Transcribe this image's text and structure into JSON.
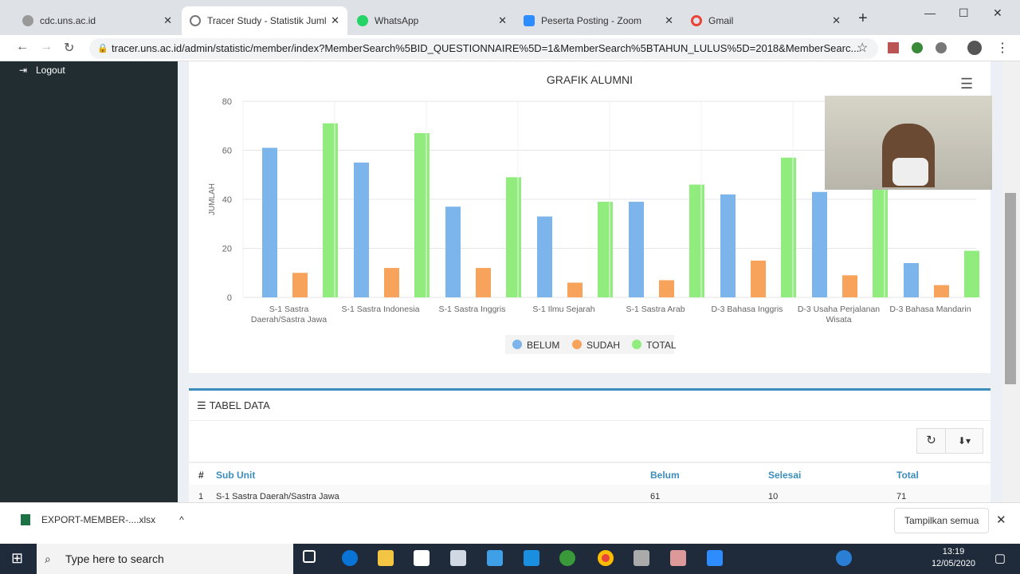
{
  "browser": {
    "tabs": [
      {
        "label": "cdc.uns.ac.id",
        "color": "#888"
      },
      {
        "label": "Tracer Study - Statistik Jumlah",
        "color": "#777"
      },
      {
        "label": "WhatsApp",
        "color": "#25d366"
      },
      {
        "label": "Peserta Posting - Zoom",
        "color": "#2d8cff"
      },
      {
        "label": "Gmail",
        "color": "#ea4335"
      }
    ],
    "url": "tracer.uns.ac.id/admin/statistic/member/index?MemberSearch%5BID_QUESTIONNAIRE%5D=1&MemberSearch%5BTAHUN_LULUS%5D=2018&MemberSearc..."
  },
  "sidebar": {
    "logout": "Logout"
  },
  "chart_data": {
    "type": "bar",
    "title": "GRAFIK ALUMNI",
    "ylabel": "JUMLAH",
    "xlabel": "",
    "ylim": [
      0,
      80
    ],
    "yticks": [
      0,
      20,
      40,
      60,
      80
    ],
    "legend_position": "bottom",
    "categories": [
      "S-1 Sastra Daerah/Sastra Jawa",
      "S-1 Sastra Indonesia",
      "S-1 Sastra Inggris",
      "S-1 Ilmu Sejarah",
      "S-1 Sastra Arab",
      "D-3 Bahasa Inggris",
      "D-3 Usaha Perjalanan Wisata",
      "D-3 Bahasa Mandarin"
    ],
    "series": [
      {
        "name": "BELUM",
        "color": "#7cb5ec",
        "values": [
          61,
          55,
          37,
          33,
          39,
          42,
          43,
          14
        ]
      },
      {
        "name": "SUDAH",
        "color": "#f7a35c",
        "values": [
          10,
          12,
          12,
          6,
          7,
          15,
          9,
          5
        ]
      },
      {
        "name": "TOTAL",
        "color": "#90ed7d",
        "values": [
          71,
          67,
          49,
          39,
          46,
          57,
          52,
          19
        ]
      }
    ]
  },
  "table": {
    "title": "TABEL DATA",
    "headers": [
      "#",
      "Sub Unit",
      "Belum",
      "Selesai",
      "Total"
    ],
    "rows": [
      [
        "1",
        "S-1 Sastra Daerah/Sastra Jawa",
        "61",
        "10",
        "71"
      ]
    ]
  },
  "download": {
    "file": "EXPORT-MEMBER-....xlsx",
    "show_all": "Tampilkan semua"
  },
  "taskbar": {
    "search": "Type here to search",
    "time": "13:19",
    "date": "12/05/2020"
  }
}
